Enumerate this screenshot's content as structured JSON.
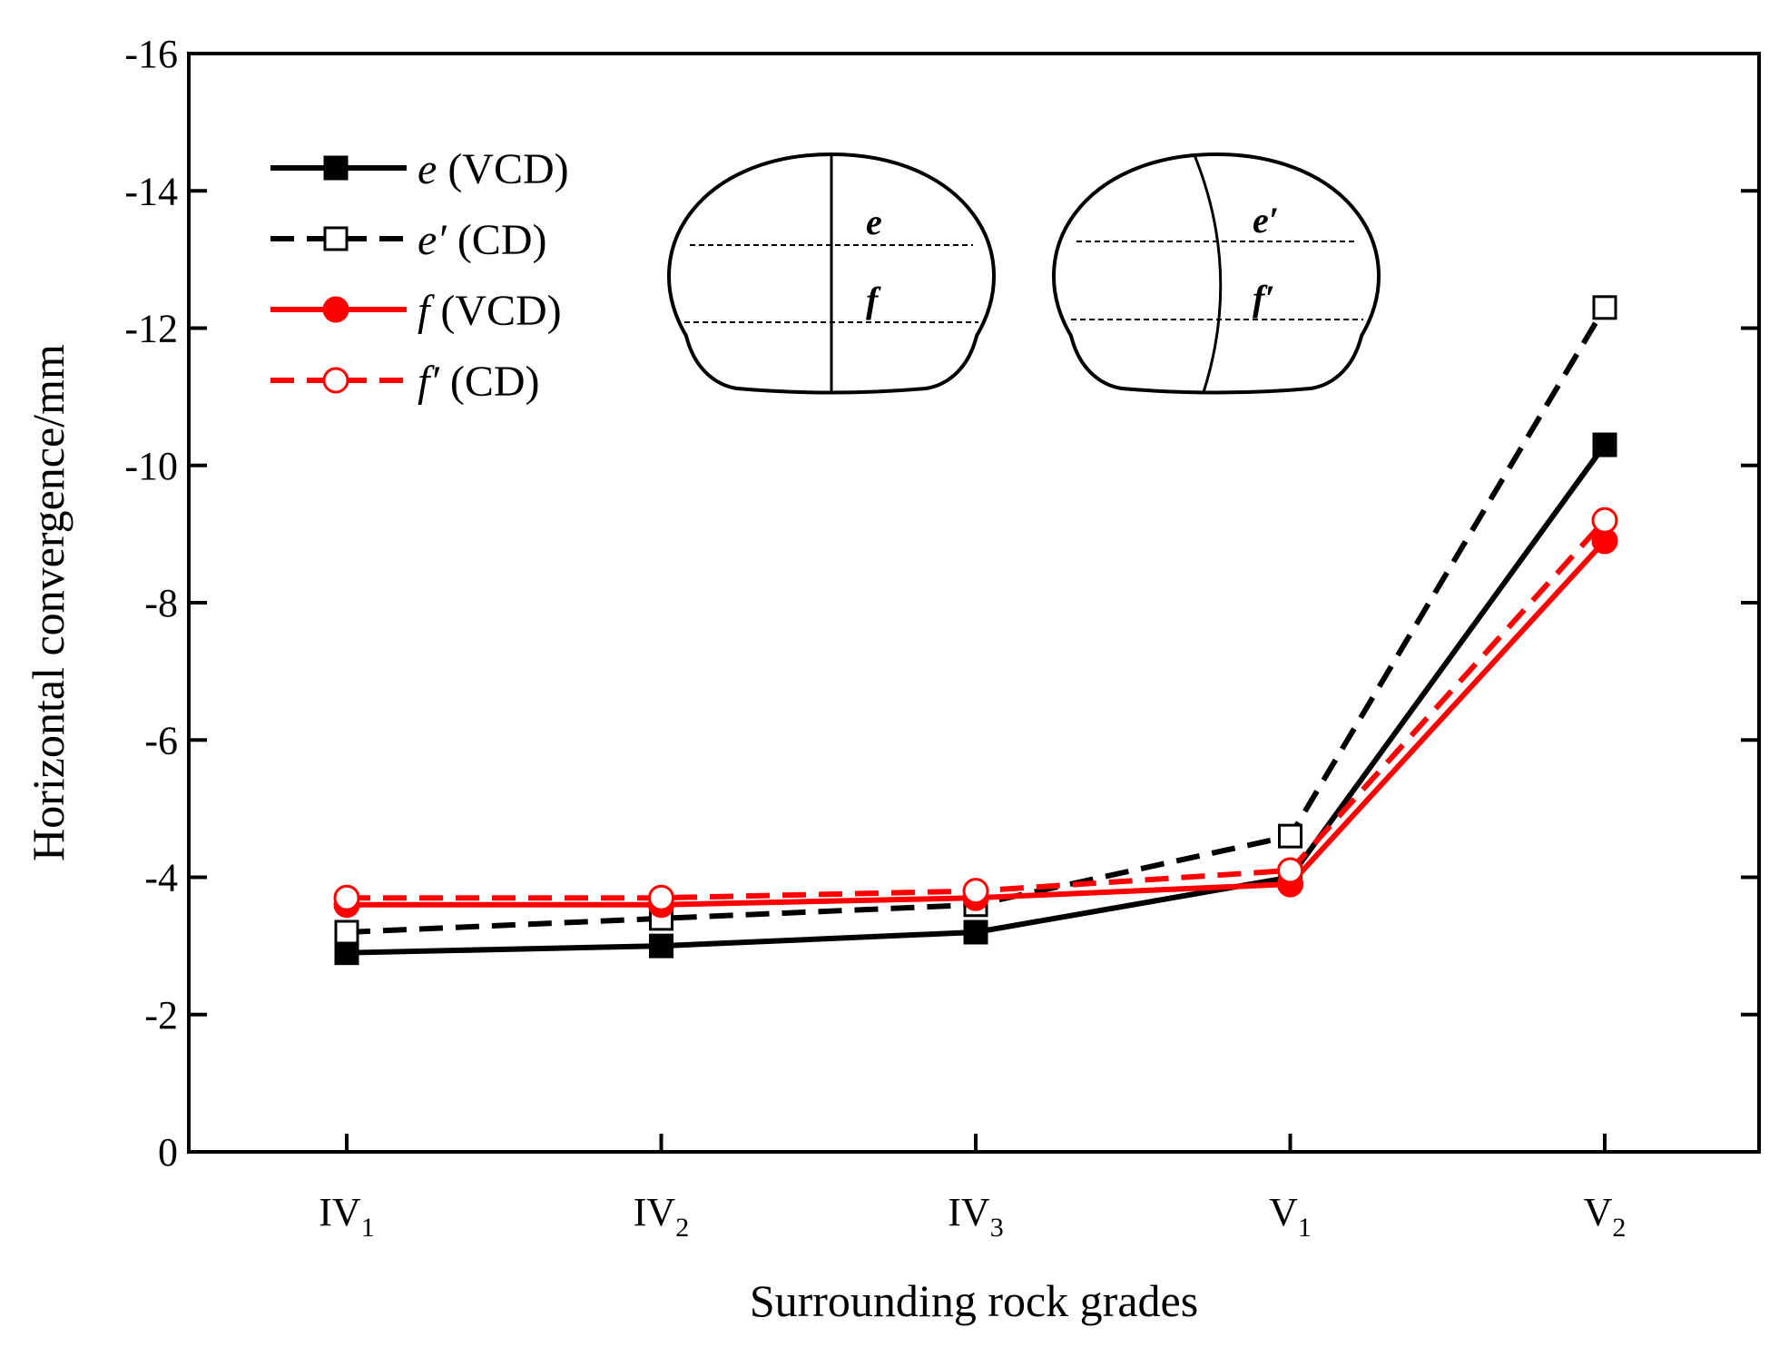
{
  "chart_data": {
    "type": "line",
    "title": "",
    "xlabel": "Surrounding rock grades",
    "ylabel": "Horizontal convergence/mm",
    "categories": [
      {
        "base": "IV",
        "sub": "1"
      },
      {
        "base": "IV",
        "sub": "2"
      },
      {
        "base": "IV",
        "sub": "3"
      },
      {
        "base": "V",
        "sub": "1"
      },
      {
        "base": "V",
        "sub": "2"
      }
    ],
    "ylim": [
      0,
      -16
    ],
    "yticks": [
      "0",
      "-2",
      "-4",
      "-6",
      "-8",
      "-10",
      "-12",
      "-14",
      "-16"
    ],
    "grid": false,
    "legend_position": "top-left",
    "series": [
      {
        "name": "e (VCD)",
        "symbol": "e",
        "method": "(VCD)",
        "color": "#000000",
        "dashed": false,
        "marker": "square-filled",
        "values": [
          -2.9,
          -3.0,
          -3.2,
          -4.0,
          -10.3
        ]
      },
      {
        "name": "e′ (CD)",
        "symbol": "e′",
        "method": "(CD)",
        "color": "#000000",
        "dashed": true,
        "marker": "square-open",
        "values": [
          -3.2,
          -3.4,
          -3.6,
          -4.6,
          -12.3
        ]
      },
      {
        "name": "f (VCD)",
        "symbol": "f",
        "method": "(VCD)",
        "color": "#ff0000",
        "dashed": false,
        "marker": "circle-filled",
        "values": [
          -3.6,
          -3.6,
          -3.7,
          -3.9,
          -8.9
        ]
      },
      {
        "name": "f′ (CD)",
        "symbol": "f′",
        "method": "(CD)",
        "color": "#ff0000",
        "dashed": true,
        "marker": "circle-open",
        "values": [
          -3.7,
          -3.7,
          -3.8,
          -4.1,
          -9.2
        ]
      }
    ],
    "inset": {
      "vcd_labels": [
        "e",
        "f"
      ],
      "cd_labels": [
        "e′",
        "f′"
      ]
    }
  }
}
